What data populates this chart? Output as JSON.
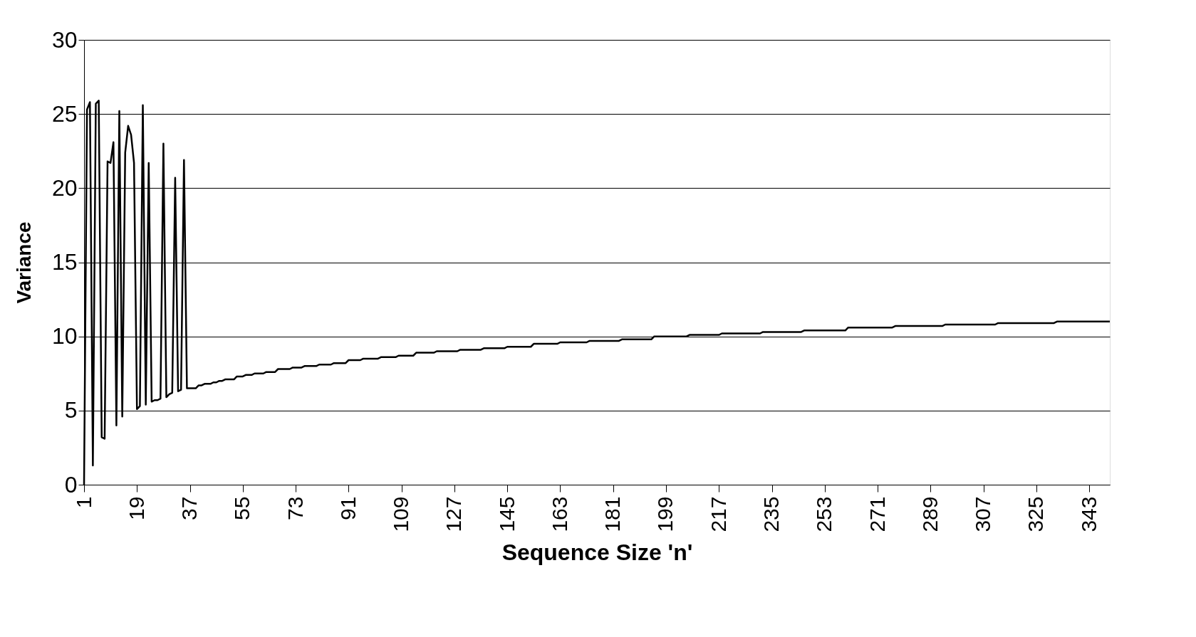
{
  "chart_data": {
    "type": "line",
    "xlabel": "Sequence Size 'n'",
    "ylabel": "Variance",
    "xlim": [
      1,
      350
    ],
    "xticks": [
      1,
      19,
      37,
      55,
      73,
      91,
      109,
      127,
      145,
      163,
      181,
      199,
      217,
      235,
      253,
      271,
      289,
      307,
      325,
      343
    ],
    "ylim": [
      0,
      30
    ],
    "yticks": [
      0,
      5,
      10,
      15,
      20,
      25,
      30
    ],
    "grid": "y",
    "marker": "none",
    "line_style": "solid",
    "series": [
      {
        "color": "#000000",
        "x": [
          1,
          2,
          3,
          4,
          5,
          6,
          7,
          8,
          9,
          10,
          11,
          12,
          13,
          14,
          15,
          16,
          17,
          18,
          19,
          20,
          21,
          22,
          23,
          24,
          25,
          26,
          27,
          28,
          29,
          30,
          31,
          32,
          33,
          34,
          35,
          36,
          39,
          40,
          41,
          42,
          44,
          45,
          46,
          47,
          48,
          49,
          52,
          53,
          55,
          56,
          58,
          59,
          62,
          63,
          66,
          67,
          71,
          72,
          75,
          76,
          80,
          81,
          85,
          86,
          90,
          91,
          95,
          96,
          101,
          102,
          107,
          108,
          113,
          114,
          120,
          121,
          128,
          129,
          136,
          137,
          144,
          145,
          153,
          154,
          162,
          163,
          172,
          173,
          183,
          184,
          194,
          195,
          206,
          207,
          217,
          218,
          231,
          232,
          245,
          246,
          260,
          261,
          276,
          277,
          293,
          294,
          311,
          312,
          331,
          332,
          350
        ],
        "values": [
          0,
          25.3,
          25.8,
          1.3,
          25.7,
          25.9,
          3.2,
          3.1,
          21.8,
          21.7,
          23.1,
          4.0,
          25.2,
          4.6,
          22.4,
          24.2,
          23.6,
          21.7,
          5.1,
          5.3,
          25.6,
          5.4,
          21.7,
          5.6,
          5.7,
          5.7,
          5.8,
          23.0,
          5.9,
          6.1,
          6.2,
          20.7,
          6.3,
          6.4,
          21.9,
          6.5,
          6.5,
          6.7,
          6.7,
          6.8,
          6.8,
          6.9,
          6.9,
          7.0,
          7.0,
          7.1,
          7.1,
          7.3,
          7.3,
          7.4,
          7.4,
          7.5,
          7.5,
          7.6,
          7.6,
          7.8,
          7.8,
          7.9,
          7.9,
          8.0,
          8.0,
          8.1,
          8.1,
          8.2,
          8.2,
          8.4,
          8.4,
          8.5,
          8.5,
          8.6,
          8.6,
          8.7,
          8.7,
          8.9,
          8.9,
          9.0,
          9.0,
          9.1,
          9.1,
          9.2,
          9.2,
          9.3,
          9.3,
          9.5,
          9.5,
          9.6,
          9.6,
          9.7,
          9.7,
          9.8,
          9.8,
          10.0,
          10.0,
          10.1,
          10.1,
          10.2,
          10.2,
          10.3,
          10.3,
          10.4,
          10.4,
          10.6,
          10.6,
          10.7,
          10.7,
          10.8,
          10.8,
          10.9,
          10.9,
          11.0,
          11.0
        ]
      }
    ]
  }
}
